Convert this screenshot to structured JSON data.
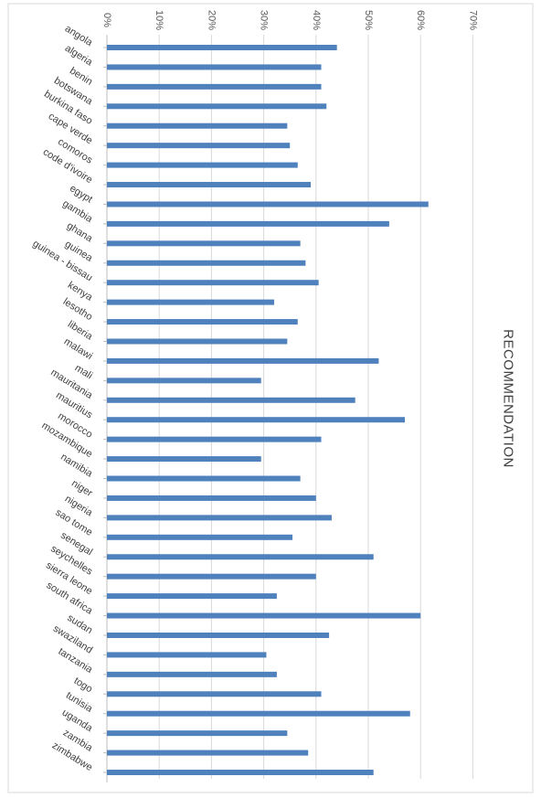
{
  "chart_data": {
    "type": "bar",
    "orientation": "horizontal",
    "title": "RECOMMENDATION",
    "xlabel": "",
    "ylabel": "",
    "xlim": [
      0,
      70
    ],
    "value_unit": "%",
    "ticks": [
      "0%",
      "10%",
      "20%",
      "30%",
      "40%",
      "50%",
      "60%",
      "70%"
    ],
    "grid": true,
    "legend": "none",
    "bar_color": "#4f81bd",
    "gridline_color": "#d9d9d9",
    "categories": [
      "angola",
      "algeria",
      "benin",
      "botswana",
      "burkina faso",
      "cape verde",
      "comoros",
      "code d'ivoire",
      "egypt",
      "gambia",
      "ghana",
      "guinea",
      "guinea - bissau",
      "kenya",
      "lesotho",
      "liberia",
      "malawi",
      "mali",
      "mauritania",
      "mauritius",
      "morocco",
      "mozambique",
      "namibia",
      "niger",
      "nigeria",
      "sao tome",
      "senegal",
      "seychelles",
      "sierra leone",
      "south africa",
      "sudan",
      "swaziland",
      "tanzania",
      "togo",
      "tunisia",
      "uganda",
      "zambia",
      "zimbabwe"
    ],
    "values": [
      44,
      41,
      41,
      42,
      34.5,
      35,
      36.5,
      39,
      61.5,
      54,
      37,
      38,
      40.5,
      32,
      36.5,
      34.5,
      52,
      29.5,
      47.5,
      57,
      41,
      29.5,
      37,
      40,
      43,
      35.5,
      51,
      40,
      32.5,
      60,
      42.5,
      30.5,
      32.5,
      41,
      58,
      34.5,
      38.5,
      51
    ]
  }
}
